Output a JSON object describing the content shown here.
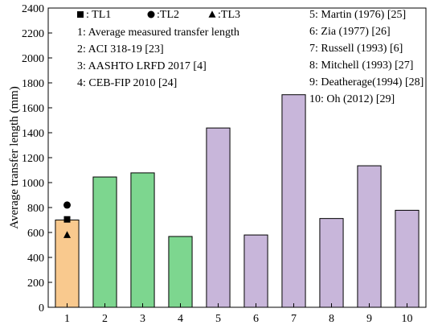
{
  "chart_data": {
    "type": "bar",
    "categories": [
      "1",
      "2",
      "3",
      "4",
      "5",
      "6",
      "7",
      "8",
      "9",
      "10"
    ],
    "values": [
      700,
      1045,
      1078,
      568,
      1438,
      580,
      1705,
      712,
      1135,
      778
    ],
    "ylabel": "Average transfer length (mm)",
    "xlabel": "",
    "ylim": [
      0,
      2400
    ],
    "yticks": [
      0,
      200,
      400,
      600,
      800,
      1000,
      1200,
      1400,
      1600,
      1800,
      2000,
      2200,
      2400
    ],
    "grid": false,
    "bar_colors": [
      "#f9c98e",
      "#7dd68f",
      "#7dd68f",
      "#7dd68f",
      "#c8b6da",
      "#c8b6da",
      "#c8b6da",
      "#c8b6da",
      "#c8b6da",
      "#c8b6da"
    ],
    "scatter": [
      {
        "name": "TL1",
        "marker": "square",
        "x": "1",
        "y": 705
      },
      {
        "name": "TL2",
        "marker": "circle",
        "x": "1",
        "y": 820
      },
      {
        "name": "TL3",
        "marker": "triangle",
        "x": "1",
        "y": 580
      }
    ],
    "legend_left": {
      "placement": "top-left",
      "entries": [
        {
          "marker": "square",
          "text": ": TL1"
        },
        {
          "marker": "circle",
          "text": ":TL2"
        },
        {
          "marker": "triangle",
          "text": ":TL3"
        }
      ],
      "lines": [
        "1: Average measured transfer length",
        "2: ACI 318-19 [23]",
        "3: AASHTO LRFD 2017 [4]",
        "4: CEB-FIP 2010 [24]"
      ]
    },
    "legend_right": {
      "placement": "top-right",
      "lines": [
        "5: Martin  (1976) [25]",
        "6: Zia (1977) [26]",
        "7: Russell  (1993) [6]",
        "8: Mitchell (1993) [27]",
        "9: Deatherage(1994) [28]",
        "10: Oh (2012) [29]"
      ]
    }
  }
}
